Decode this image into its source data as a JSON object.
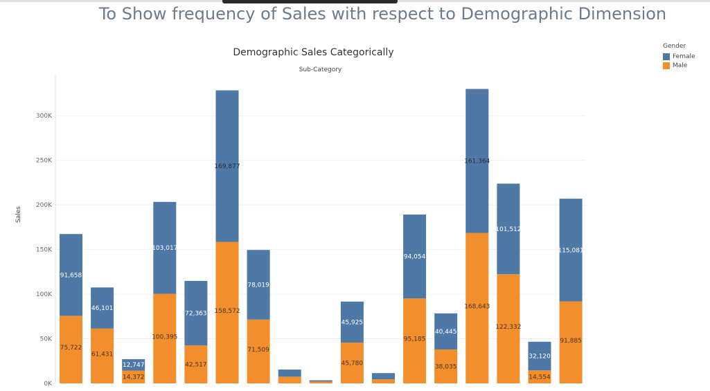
{
  "page": {
    "title": "To Show frequency of Sales with respect to Demographic Dimension"
  },
  "colors": {
    "female": "#4e79a7",
    "male": "#f28e2b"
  },
  "chart_data": {
    "type": "bar",
    "stacked": true,
    "title": "Demographic Sales Categorically",
    "xlabel": "Sub-Category",
    "ylabel": "Sales",
    "ylim": [
      0,
      330000
    ],
    "yticks": [
      0,
      50000,
      100000,
      150000,
      200000,
      250000,
      300000
    ],
    "ytick_labels": [
      "0K",
      "50K",
      "100K",
      "150K",
      "200K",
      "250K",
      "300K"
    ],
    "grid": true,
    "legend": {
      "title": "Gender",
      "position": "top-right",
      "entries": [
        "Female",
        "Male"
      ]
    },
    "series": [
      {
        "name": "Male",
        "values": [
          75722,
          61431,
          14372,
          100395,
          42517,
          158572,
          71509,
          7500,
          2000,
          45780,
          4500,
          95185,
          38035,
          168643,
          122332,
          14554,
          91885
        ],
        "labels": [
          "75,722",
          "61,431",
          "14,372",
          "100,395",
          "42,517",
          "158,572",
          "71,509",
          "",
          "",
          "45,780",
          "",
          "95,185",
          "38,035",
          "168,643",
          "122,332",
          "14,554",
          "91,885"
        ]
      },
      {
        "name": "Female",
        "values": [
          91658,
          46101,
          12747,
          103017,
          72363,
          169877,
          78019,
          8000,
          1500,
          45925,
          7000,
          94054,
          40445,
          161364,
          101512,
          32120,
          115081
        ],
        "labels": [
          "91,658",
          "46,101",
          "12,747",
          "103,017",
          "72,363",
          "169,877",
          "78,019",
          "",
          "",
          "45,925",
          "",
          "94,054",
          "40,445",
          "161,364",
          "101,512",
          "32,120",
          "115,081"
        ]
      }
    ]
  }
}
